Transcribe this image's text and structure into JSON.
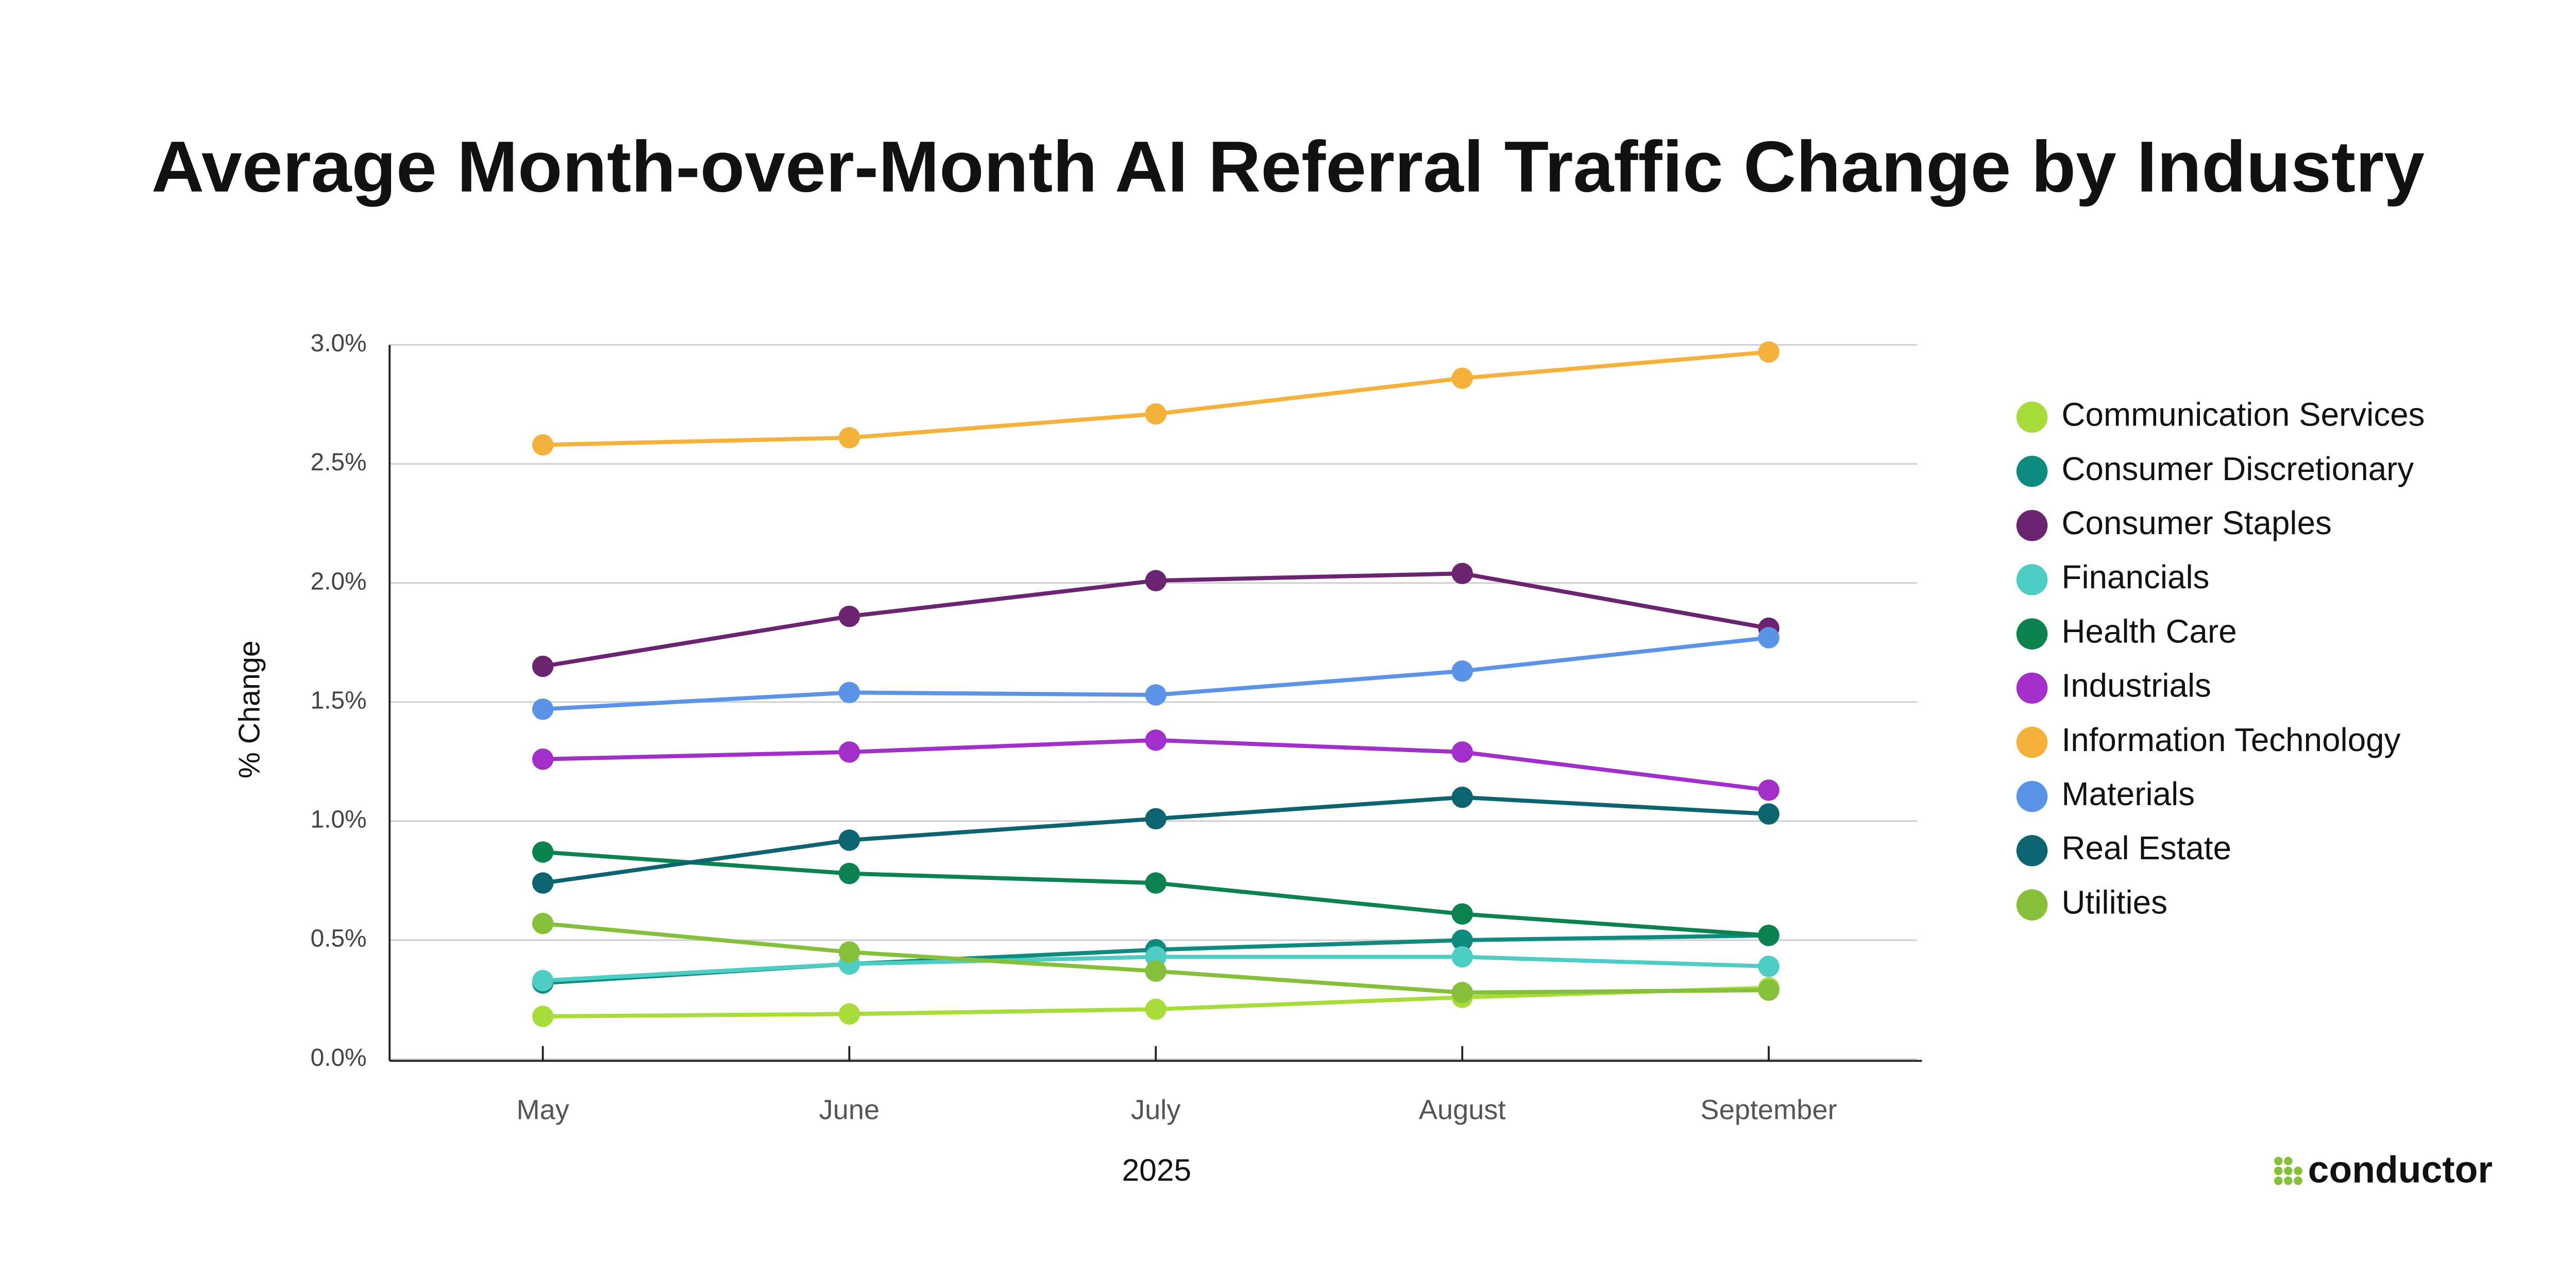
{
  "chart_data": {
    "type": "line",
    "title": "Average Month-over-Month AI Referral Traffic Change by Industry",
    "x_label": "2025",
    "y_label": "% Change",
    "categories": [
      "May",
      "June",
      "July",
      "August",
      "September"
    ],
    "ylim": [
      0,
      3
    ],
    "yticks": [
      {
        "value": 0,
        "label": "0.0%"
      },
      {
        "value": 0.5,
        "label": "0.5%"
      },
      {
        "value": 1,
        "label": "1.0%"
      },
      {
        "value": 1.5,
        "label": "1.5%"
      },
      {
        "value": 2,
        "label": "2.0%"
      },
      {
        "value": 2.5,
        "label": "2.5%"
      },
      {
        "value": 3,
        "label": "3.0%"
      }
    ],
    "grid": true,
    "legend": "right",
    "series": [
      {
        "name": "Communication Services",
        "color": "#a8dc3a",
        "values": [
          0.18,
          0.19,
          0.21,
          0.26,
          0.3
        ]
      },
      {
        "name": "Consumer Discretionary",
        "color": "#0e8a7e",
        "values": [
          0.32,
          0.4,
          0.46,
          0.5,
          0.52
        ]
      },
      {
        "name": "Consumer Staples",
        "color": "#6a2470",
        "values": [
          1.65,
          1.86,
          2.01,
          2.04,
          1.81
        ]
      },
      {
        "name": "Financials",
        "color": "#4ecdc4",
        "values": [
          0.33,
          0.4,
          0.43,
          0.43,
          0.39
        ]
      },
      {
        "name": "Health Care",
        "color": "#0b8250",
        "values": [
          0.87,
          0.78,
          0.74,
          0.61,
          0.52
        ]
      },
      {
        "name": "Industrials",
        "color": "#a22fc9",
        "values": [
          1.26,
          1.29,
          1.34,
          1.29,
          1.13
        ]
      },
      {
        "name": "Information Technology",
        "color": "#f4b13c",
        "values": [
          2.58,
          2.61,
          2.71,
          2.86,
          2.97
        ]
      },
      {
        "name": "Materials",
        "color": "#5b93e6",
        "values": [
          1.47,
          1.54,
          1.53,
          1.63,
          1.77
        ]
      },
      {
        "name": "Real Estate",
        "color": "#0b6470",
        "values": [
          0.74,
          0.92,
          1.01,
          1.1,
          1.03
        ]
      },
      {
        "name": "Utilities",
        "color": "#86c03a",
        "values": [
          0.57,
          0.45,
          0.37,
          0.28,
          0.29
        ]
      }
    ],
    "brand": "conductor"
  }
}
